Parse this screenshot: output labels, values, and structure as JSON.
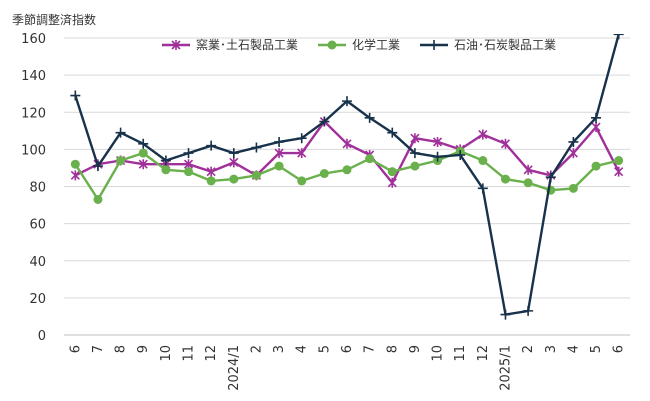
{
  "chart_data": {
    "type": "line",
    "ylabel": "季節調整済指数",
    "ylim": [
      0,
      160
    ],
    "yticks": [
      0,
      20,
      40,
      60,
      80,
      100,
      120,
      140,
      160
    ],
    "grid": "horizontal",
    "legend": "top",
    "categories": [
      "6",
      "7",
      "8",
      "9",
      "10",
      "11",
      "12",
      "2024/1",
      "2",
      "3",
      "4",
      "5",
      "6",
      "7",
      "8",
      "9",
      "10",
      "11",
      "12",
      "2025/1",
      "2",
      "3",
      "4",
      "5",
      "6"
    ],
    "series": [
      {
        "name": "窯業･土石製品工業",
        "color": "#a0309a",
        "marker": "asterisk",
        "values": [
          86,
          92,
          94,
          92,
          92,
          92,
          88,
          93,
          86,
          98,
          98,
          115,
          103,
          97,
          82,
          106,
          104,
          100,
          108,
          103,
          89,
          86,
          98,
          112,
          88
        ]
      },
      {
        "name": "化学工業",
        "color": "#6ab04c",
        "marker": "circle",
        "values": [
          92,
          73,
          94,
          98,
          89,
          88,
          83,
          84,
          86,
          91,
          83,
          87,
          89,
          95,
          88,
          91,
          94,
          99,
          94,
          84,
          82,
          78,
          79,
          91,
          94
        ]
      },
      {
        "name": "石油･石炭製品工業",
        "color": "#17324a",
        "marker": "plus",
        "values": [
          129,
          91,
          109,
          103,
          94,
          98,
          102,
          98,
          101,
          104,
          106,
          115,
          126,
          117,
          109,
          98,
          96,
          97,
          79,
          11,
          13,
          85,
          104,
          117,
          162
        ]
      }
    ]
  }
}
